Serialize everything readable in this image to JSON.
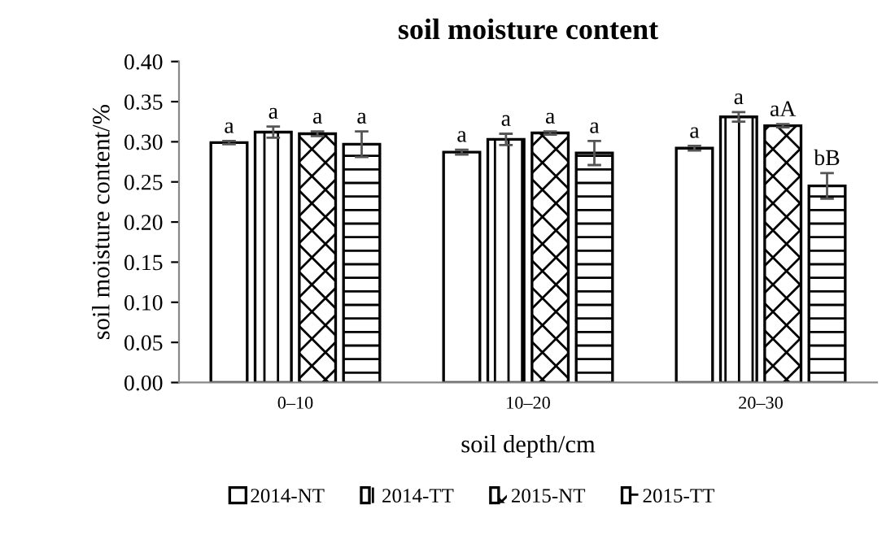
{
  "chart_data": {
    "type": "bar",
    "title": "soil moisture content",
    "xlabel": "soil depth/cm",
    "ylabel": "soil moisture content/%",
    "categories": [
      "0–10",
      "10–20",
      "20–30"
    ],
    "series": [
      {
        "name": "2014-NT",
        "color": "#ffffff",
        "values": [
          0.299,
          0.287,
          0.292
        ],
        "errors": [
          0.002,
          0.003,
          0.003
        ],
        "value_labels": [
          "a",
          "a",
          "a"
        ]
      },
      {
        "name": "2014-TT",
        "color": "#ffffff",
        "values": [
          0.312,
          0.303,
          0.331
        ],
        "errors": [
          0.007,
          0.007,
          0.006
        ],
        "value_labels": [
          "a",
          "a",
          "a"
        ]
      },
      {
        "name": "2015-NT",
        "color": "#ffffff",
        "values": [
          0.31,
          0.311,
          0.32
        ],
        "errors": [
          0.003,
          0.002,
          0.002
        ],
        "value_labels": [
          "a",
          "a",
          "aA"
        ]
      },
      {
        "name": "2015-TT",
        "color": "#ffffff",
        "values": [
          0.297,
          0.286,
          0.245
        ],
        "errors": [
          0.016,
          0.015,
          0.016
        ],
        "value_labels": [
          "a",
          "a",
          "bB"
        ]
      }
    ],
    "ylim": [
      0,
      0.4
    ],
    "yticks": [
      {
        "value": 0,
        "label": "0.00"
      },
      {
        "value": 0.05,
        "label": "0.05"
      },
      {
        "value": 0.1,
        "label": "0.10"
      },
      {
        "value": 0.15,
        "label": "0.15"
      },
      {
        "value": 0.2,
        "label": "0.20"
      },
      {
        "value": 0.25,
        "label": "0.25"
      },
      {
        "value": 0.3,
        "label": "0.30"
      },
      {
        "value": 0.35,
        "label": "0.35"
      },
      {
        "value": 0.4,
        "label": "0.40"
      }
    ],
    "grid": false,
    "legend": "bottom"
  }
}
